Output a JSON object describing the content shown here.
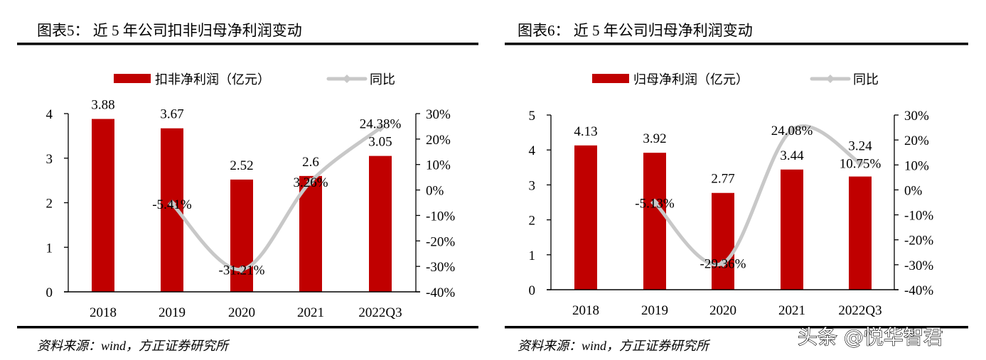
{
  "colors": {
    "bar": "#C00000",
    "line": "#C8C8C8",
    "text": "#000000"
  },
  "watermark": "头条 @悦华智君",
  "chart_data": [
    {
      "type": "bar+line",
      "title": "图表5：  近 5 年公司扣非归母净利润变动",
      "source": "资料来源：wind，方正证券研究所",
      "categories": [
        "2018",
        "2019",
        "2020",
        "2021",
        "2022Q3"
      ],
      "series": [
        {
          "name": "扣非净利润（亿元）",
          "type": "bar",
          "axis": "left",
          "values": [
            3.88,
            3.67,
            2.52,
            2.6,
            3.05
          ],
          "labels": [
            "3.88",
            "3.67",
            "2.52",
            "2.6",
            "3.05"
          ]
        },
        {
          "name": "同比",
          "type": "line",
          "axis": "right",
          "values": [
            null,
            -5.41,
            -31.21,
            3.26,
            24.38
          ],
          "labels": [
            "",
            "-5.41%",
            "-31.21%",
            "3.26%",
            "24.38%"
          ]
        }
      ],
      "left_axis": {
        "ylim": [
          0,
          4
        ],
        "ticks": [
          "0",
          "1",
          "2",
          "3",
          "4"
        ]
      },
      "right_axis": {
        "ylim": [
          -40,
          30
        ],
        "ticks": [
          "-40%",
          "-30%",
          "-20%",
          "-10%",
          "0%",
          "10%",
          "20%",
          "30%"
        ]
      },
      "legend": "top",
      "grid": false
    },
    {
      "type": "bar+line",
      "title": "图表6：  近 5 年公司归母净利润变动",
      "source": "资料来源：wind，方正证券研究所",
      "categories": [
        "2018",
        "2019",
        "2020",
        "2021",
        "2022Q3"
      ],
      "series": [
        {
          "name": "归母净利润（亿元）",
          "type": "bar",
          "axis": "left",
          "values": [
            4.13,
            3.92,
            2.77,
            3.44,
            3.24
          ],
          "labels": [
            "4.13",
            "3.92",
            "2.77",
            "3.44",
            "3.24"
          ]
        },
        {
          "name": "同比",
          "type": "line",
          "axis": "right",
          "values": [
            null,
            -5.13,
            -29.36,
            24.08,
            10.75
          ],
          "labels": [
            "",
            "-5.13%",
            "-29.36%",
            "24.08%",
            "10.75%"
          ]
        }
      ],
      "left_axis": {
        "ylim": [
          0,
          5
        ],
        "ticks": [
          "0",
          "1",
          "2",
          "3",
          "4",
          "5"
        ]
      },
      "right_axis": {
        "ylim": [
          -40,
          30
        ],
        "ticks": [
          "-40%",
          "-30%",
          "-20%",
          "-10%",
          "0%",
          "10%",
          "20%",
          "30%"
        ]
      },
      "legend": "top",
      "grid": false
    }
  ]
}
